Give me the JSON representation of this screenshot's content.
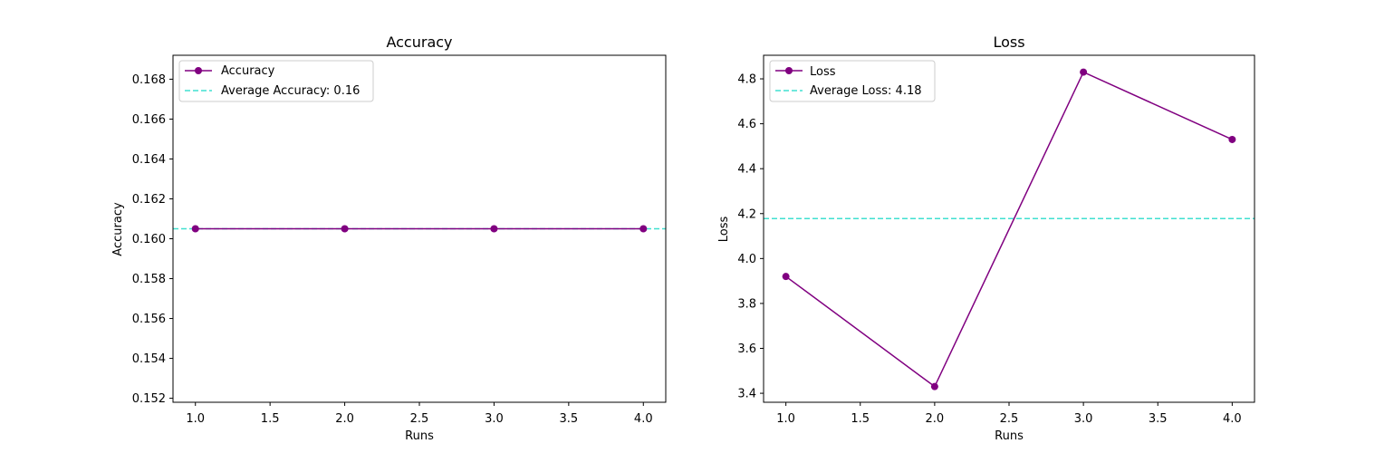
{
  "chart_data": [
    {
      "type": "line",
      "title": "Accuracy",
      "xlabel": "Runs",
      "ylabel": "Accuracy",
      "x": [
        1.0,
        2.0,
        3.0,
        4.0
      ],
      "xlim": [
        0.85,
        4.15
      ],
      "ylim": [
        0.1518,
        0.1692
      ],
      "xticks": [
        "1.0",
        "1.5",
        "2.0",
        "2.5",
        "3.0",
        "3.5",
        "4.0"
      ],
      "yticks": [
        "0.152",
        "0.154",
        "0.156",
        "0.158",
        "0.160",
        "0.162",
        "0.164",
        "0.166",
        "0.168"
      ],
      "grid": false,
      "legend_position": "top-left",
      "series": [
        {
          "name": "Accuracy",
          "values": [
            0.1605,
            0.1605,
            0.1605,
            0.1605
          ],
          "color": "#800080",
          "marker": "circle"
        }
      ],
      "reference_lines": [
        {
          "name": "Average Accuracy: 0.16",
          "y": 0.1605,
          "color": "#40e0d0",
          "style": "dashed"
        }
      ]
    },
    {
      "type": "line",
      "title": "Loss",
      "xlabel": "Runs",
      "ylabel": "Loss",
      "x": [
        1.0,
        2.0,
        3.0,
        4.0
      ],
      "xlim": [
        0.85,
        4.15
      ],
      "ylim": [
        3.36,
        4.905
      ],
      "xticks": [
        "1.0",
        "1.5",
        "2.0",
        "2.5",
        "3.0",
        "3.5",
        "4.0"
      ],
      "yticks": [
        "3.4",
        "3.6",
        "3.8",
        "4.0",
        "4.2",
        "4.4",
        "4.6",
        "4.8"
      ],
      "grid": false,
      "legend_position": "top-left",
      "series": [
        {
          "name": "Loss",
          "values": [
            3.92,
            3.43,
            4.83,
            4.53
          ],
          "color": "#800080",
          "marker": "circle"
        }
      ],
      "reference_lines": [
        {
          "name": "Average Loss: 4.18",
          "y": 4.178,
          "color": "#40e0d0",
          "style": "dashed"
        }
      ]
    }
  ]
}
